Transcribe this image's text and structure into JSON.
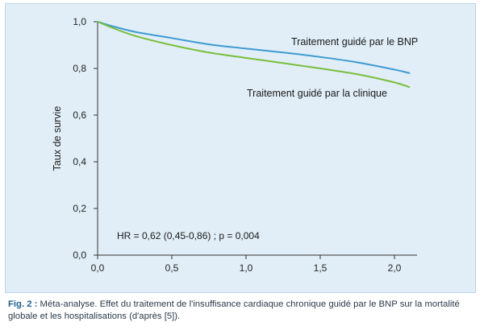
{
  "chart_data": {
    "type": "line",
    "xlabel": "",
    "ylabel": "Taux de survie",
    "xlim": [
      0,
      2.1
    ],
    "ylim": [
      0,
      1.0
    ],
    "x_ticks": [
      "0,0",
      "0,5",
      "1,0",
      "1,5",
      "2,0"
    ],
    "x_tick_values": [
      0,
      0.5,
      1.0,
      1.5,
      2.0
    ],
    "y_ticks": [
      "0,0",
      "0,2",
      "0,4",
      "0,6",
      "0,8",
      "1,0"
    ],
    "y_tick_values": [
      0,
      0.2,
      0.4,
      0.6,
      0.8,
      1.0
    ],
    "grid": false,
    "series": [
      {
        "name": "Traitement guidé par le BNP",
        "color": "#3e9ad2",
        "x": [
          0,
          0.1,
          0.25,
          0.5,
          0.75,
          1.0,
          1.25,
          1.5,
          1.75,
          2.0,
          2.1
        ],
        "y": [
          1.0,
          0.981,
          0.957,
          0.93,
          0.903,
          0.885,
          0.868,
          0.849,
          0.826,
          0.795,
          0.78
        ]
      },
      {
        "name": "Traitement guidé par la clinique",
        "color": "#78be3c",
        "x": [
          0,
          0.1,
          0.25,
          0.5,
          0.75,
          1.0,
          1.25,
          1.5,
          1.75,
          2.0,
          2.1
        ],
        "y": [
          1.0,
          0.974,
          0.94,
          0.9,
          0.868,
          0.845,
          0.823,
          0.8,
          0.775,
          0.74,
          0.72
        ]
      }
    ],
    "annotation": "HR = 0,62 (0,45-0,86) ; p = 0,004"
  },
  "caption": {
    "label": "Fig. 2 :",
    "text": " Méta-analyse. Effet du traitement de l'insuffisance cardiaque chronique guidé par le BNP sur la mortalité globale et les hospitalisations (d'après [5])."
  }
}
